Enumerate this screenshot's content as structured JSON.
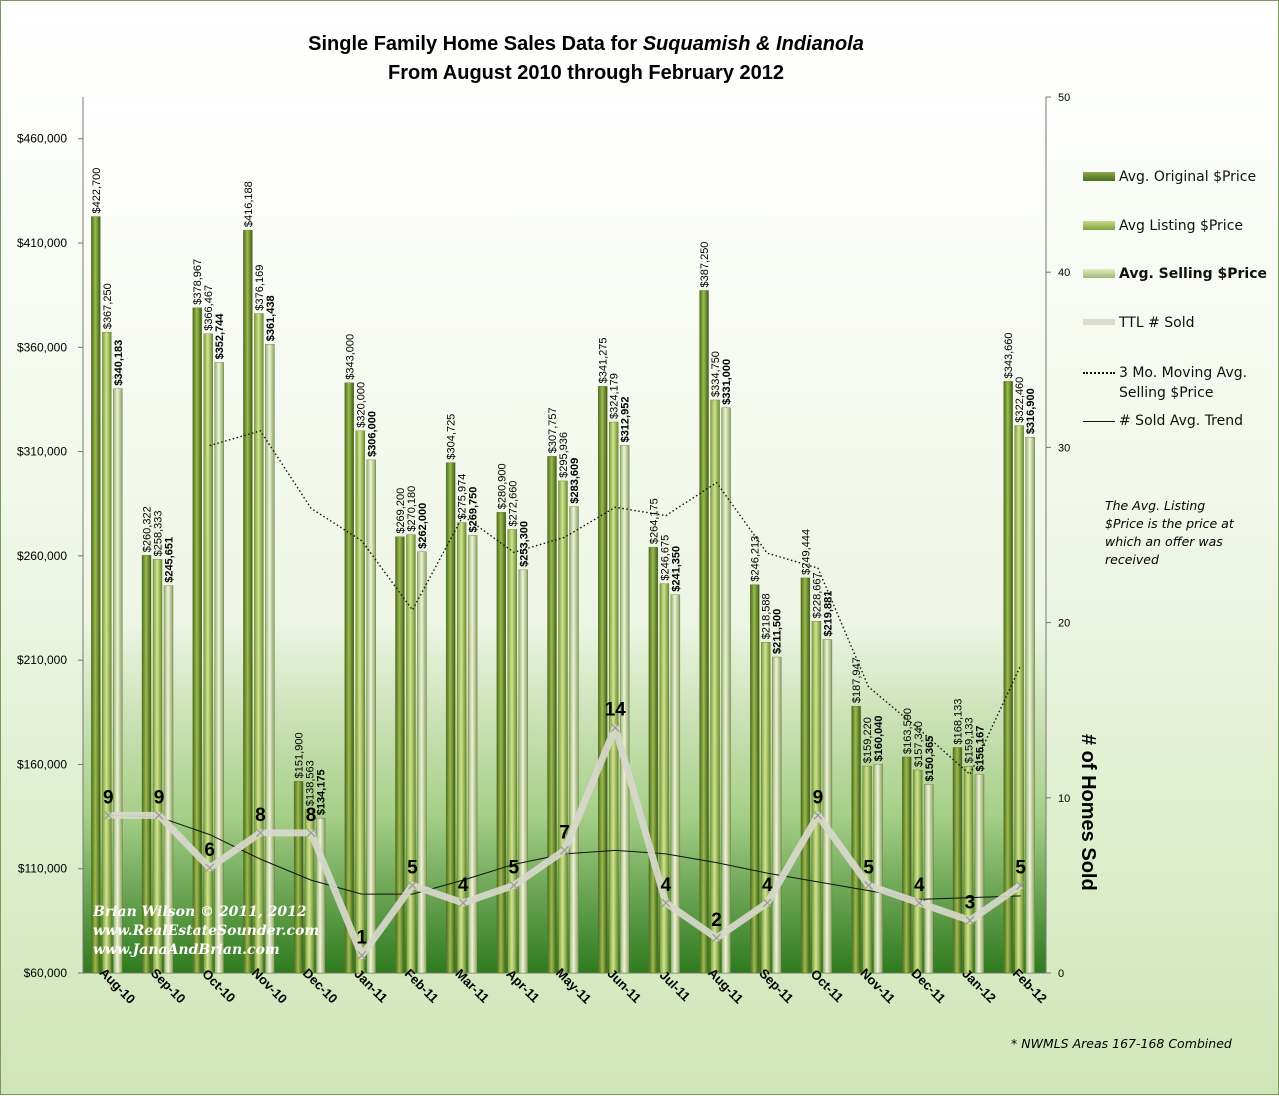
{
  "chart_data": {
    "type": "bar",
    "title_prefix": "Single Family Home Sales Data for ",
    "title_place": "Suquamish & Indianola",
    "subtitle": "From August 2010 through February 2012",
    "categories": [
      "Aug-10",
      "Sep-10",
      "Oct-10",
      "Nov-10",
      "Dec-10",
      "Jan-11",
      "Feb-11",
      "Mar-11",
      "Apr-11",
      "May-11",
      "Jun-11",
      "Jul-11",
      "Aug-11",
      "Sep-11",
      "Oct-11",
      "Nov-11",
      "Dec-11",
      "Jan-12",
      "Feb-12"
    ],
    "series": [
      {
        "name": "Avg. Original $Price",
        "values": [
          422700,
          260322,
          378967,
          416188,
          151900,
          343000,
          269200,
          304725,
          280900,
          307757,
          341275,
          264175,
          387250,
          246213,
          249444,
          187947,
          163590,
          168133,
          343660
        ],
        "labels": [
          "$422,700",
          "$260,322",
          "$378,967",
          "$416,188",
          "$151,900",
          "$343,000",
          "$269,200",
          "$304,725",
          "$280,900",
          "$307,757",
          "$341,275",
          "$264,175",
          "$387,250",
          "$246,213",
          "$249,444",
          "$187,947",
          "$163,590",
          "$168,133",
          "$343,660"
        ]
      },
      {
        "name": "Avg Listing $Price",
        "values": [
          367250,
          258333,
          366467,
          376169,
          138563,
          320000,
          270180,
          275974,
          272660,
          295936,
          324179,
          246675,
          334750,
          218588,
          228667,
          159220,
          157340,
          159133,
          322460
        ],
        "labels": [
          "$367,250",
          "$258,333",
          "$366,467",
          "$376,169",
          "$138,563",
          "$320,000",
          "$270,180",
          "$275,974",
          "$272,660",
          "$295,936",
          "$324,179",
          "$246,675",
          "$334,750",
          "$218,588",
          "$228,667",
          "$159,220",
          "$157,340",
          "$159,133",
          "$322,460"
        ]
      },
      {
        "name": "Avg. Selling $Price",
        "values": [
          340183,
          245651,
          352744,
          361438,
          134175,
          306000,
          262000,
          269750,
          253300,
          283609,
          312952,
          241350,
          331000,
          211500,
          219881,
          160040,
          150365,
          155167,
          316900
        ],
        "labels": [
          "$340,183",
          "$245,651",
          "$352,744",
          "$361,438",
          "$134,175",
          "$306,000",
          "$262,000",
          "$269,750",
          "$253,300",
          "$283,609",
          "$312,952",
          "$241,350",
          "$331,000",
          "$211,500",
          "$219,881",
          "$160,040",
          "$150,365",
          "$155,167",
          "$316,900"
        ]
      },
      {
        "name": "TTL # Sold",
        "axis": "right",
        "values": [
          9,
          9,
          6,
          8,
          8,
          1,
          5,
          4,
          5,
          7,
          14,
          4,
          2,
          4,
          9,
          5,
          4,
          3,
          5
        ]
      },
      {
        "name": "3 Mo. Moving Avg. Selling $Price",
        "values": [
          null,
          null,
          312859,
          319944,
          282786,
          267204,
          234058,
          279250,
          261683,
          268886,
          283287,
          279304,
          295101,
          261283,
          254127,
          197140,
          176762,
          155191,
          207477
        ]
      },
      {
        "name": "# Sold Avg. Trend",
        "axis": "right",
        "values": [
          9.0,
          8.9,
          7.9,
          6.5,
          5.3,
          4.5,
          4.5,
          5.3,
          6.2,
          6.8,
          7.0,
          6.8,
          6.3,
          5.7,
          5.2,
          4.7,
          4.2,
          4.3,
          4.4
        ]
      }
    ],
    "legend": [
      "Avg. Original $Price",
      "Avg Listing $Price",
      "Avg. Selling $Price",
      "TTL # Sold",
      "3 Mo. Moving Avg. Selling $Price",
      "# Sold Avg. Trend"
    ],
    "yticks": [
      "$60,000",
      "$110,000",
      "$160,000",
      "$210,000",
      "$260,000",
      "$310,000",
      "$360,000",
      "$410,000",
      "$460,000"
    ],
    "ylim": [
      60000,
      480000
    ],
    "y2ticks": [
      "0",
      "10",
      "20",
      "30",
      "40",
      "50"
    ],
    "y2lim": [
      0,
      50
    ],
    "y2label": "# of Homes Sold",
    "notes": [
      "The Avg. Listing $Price is the price at which an offer was received",
      "* NWMLS Areas 167-168 Combined"
    ],
    "credits": [
      "Brian Wilson © 2011, 2012",
      "www.RealEstateSounder.com",
      "www.JanaAndBrian.com"
    ],
    "legend_position": "right",
    "grid": false,
    "colors": {
      "original": "#5a7a28",
      "listing": "#9cbc58",
      "selling": "#c4d69a",
      "sold_line": "#dcdcd0",
      "background_bottom": "#2e7a1e"
    }
  }
}
